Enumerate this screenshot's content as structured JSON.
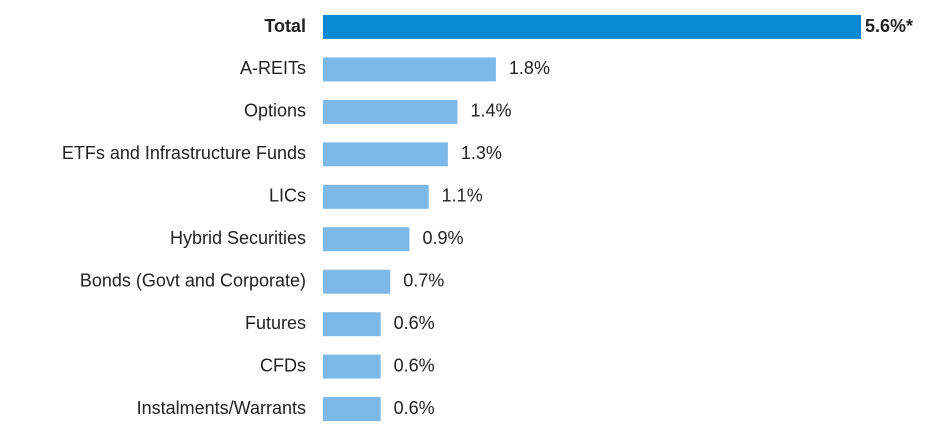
{
  "chart_data": {
    "type": "bar",
    "orientation": "horizontal",
    "categories": [
      "Total",
      "A-REITs",
      "Options",
      "ETFs and Infrastructure Funds",
      "LICs",
      "Hybrid Securities",
      "Bonds (Govt and Corporate)",
      "Futures",
      "CFDs",
      "Instalments/Warrants"
    ],
    "values": [
      5.6,
      1.8,
      1.4,
      1.3,
      1.1,
      0.9,
      0.7,
      0.6,
      0.6,
      0.6
    ],
    "value_labels": [
      "5.6%*",
      "1.8%",
      "1.4%",
      "1.3%",
      "1.1%",
      "0.9%",
      "0.7%",
      "0.6%",
      "0.6%",
      "0.6%"
    ],
    "colors": [
      "#0a8ad4",
      "#7cb9e8",
      "#7cb9e8",
      "#7cb9e8",
      "#7cb9e8",
      "#7cb9e8",
      "#7cb9e8",
      "#7cb9e8",
      "#7cb9e8",
      "#7cb9e8"
    ]
  }
}
